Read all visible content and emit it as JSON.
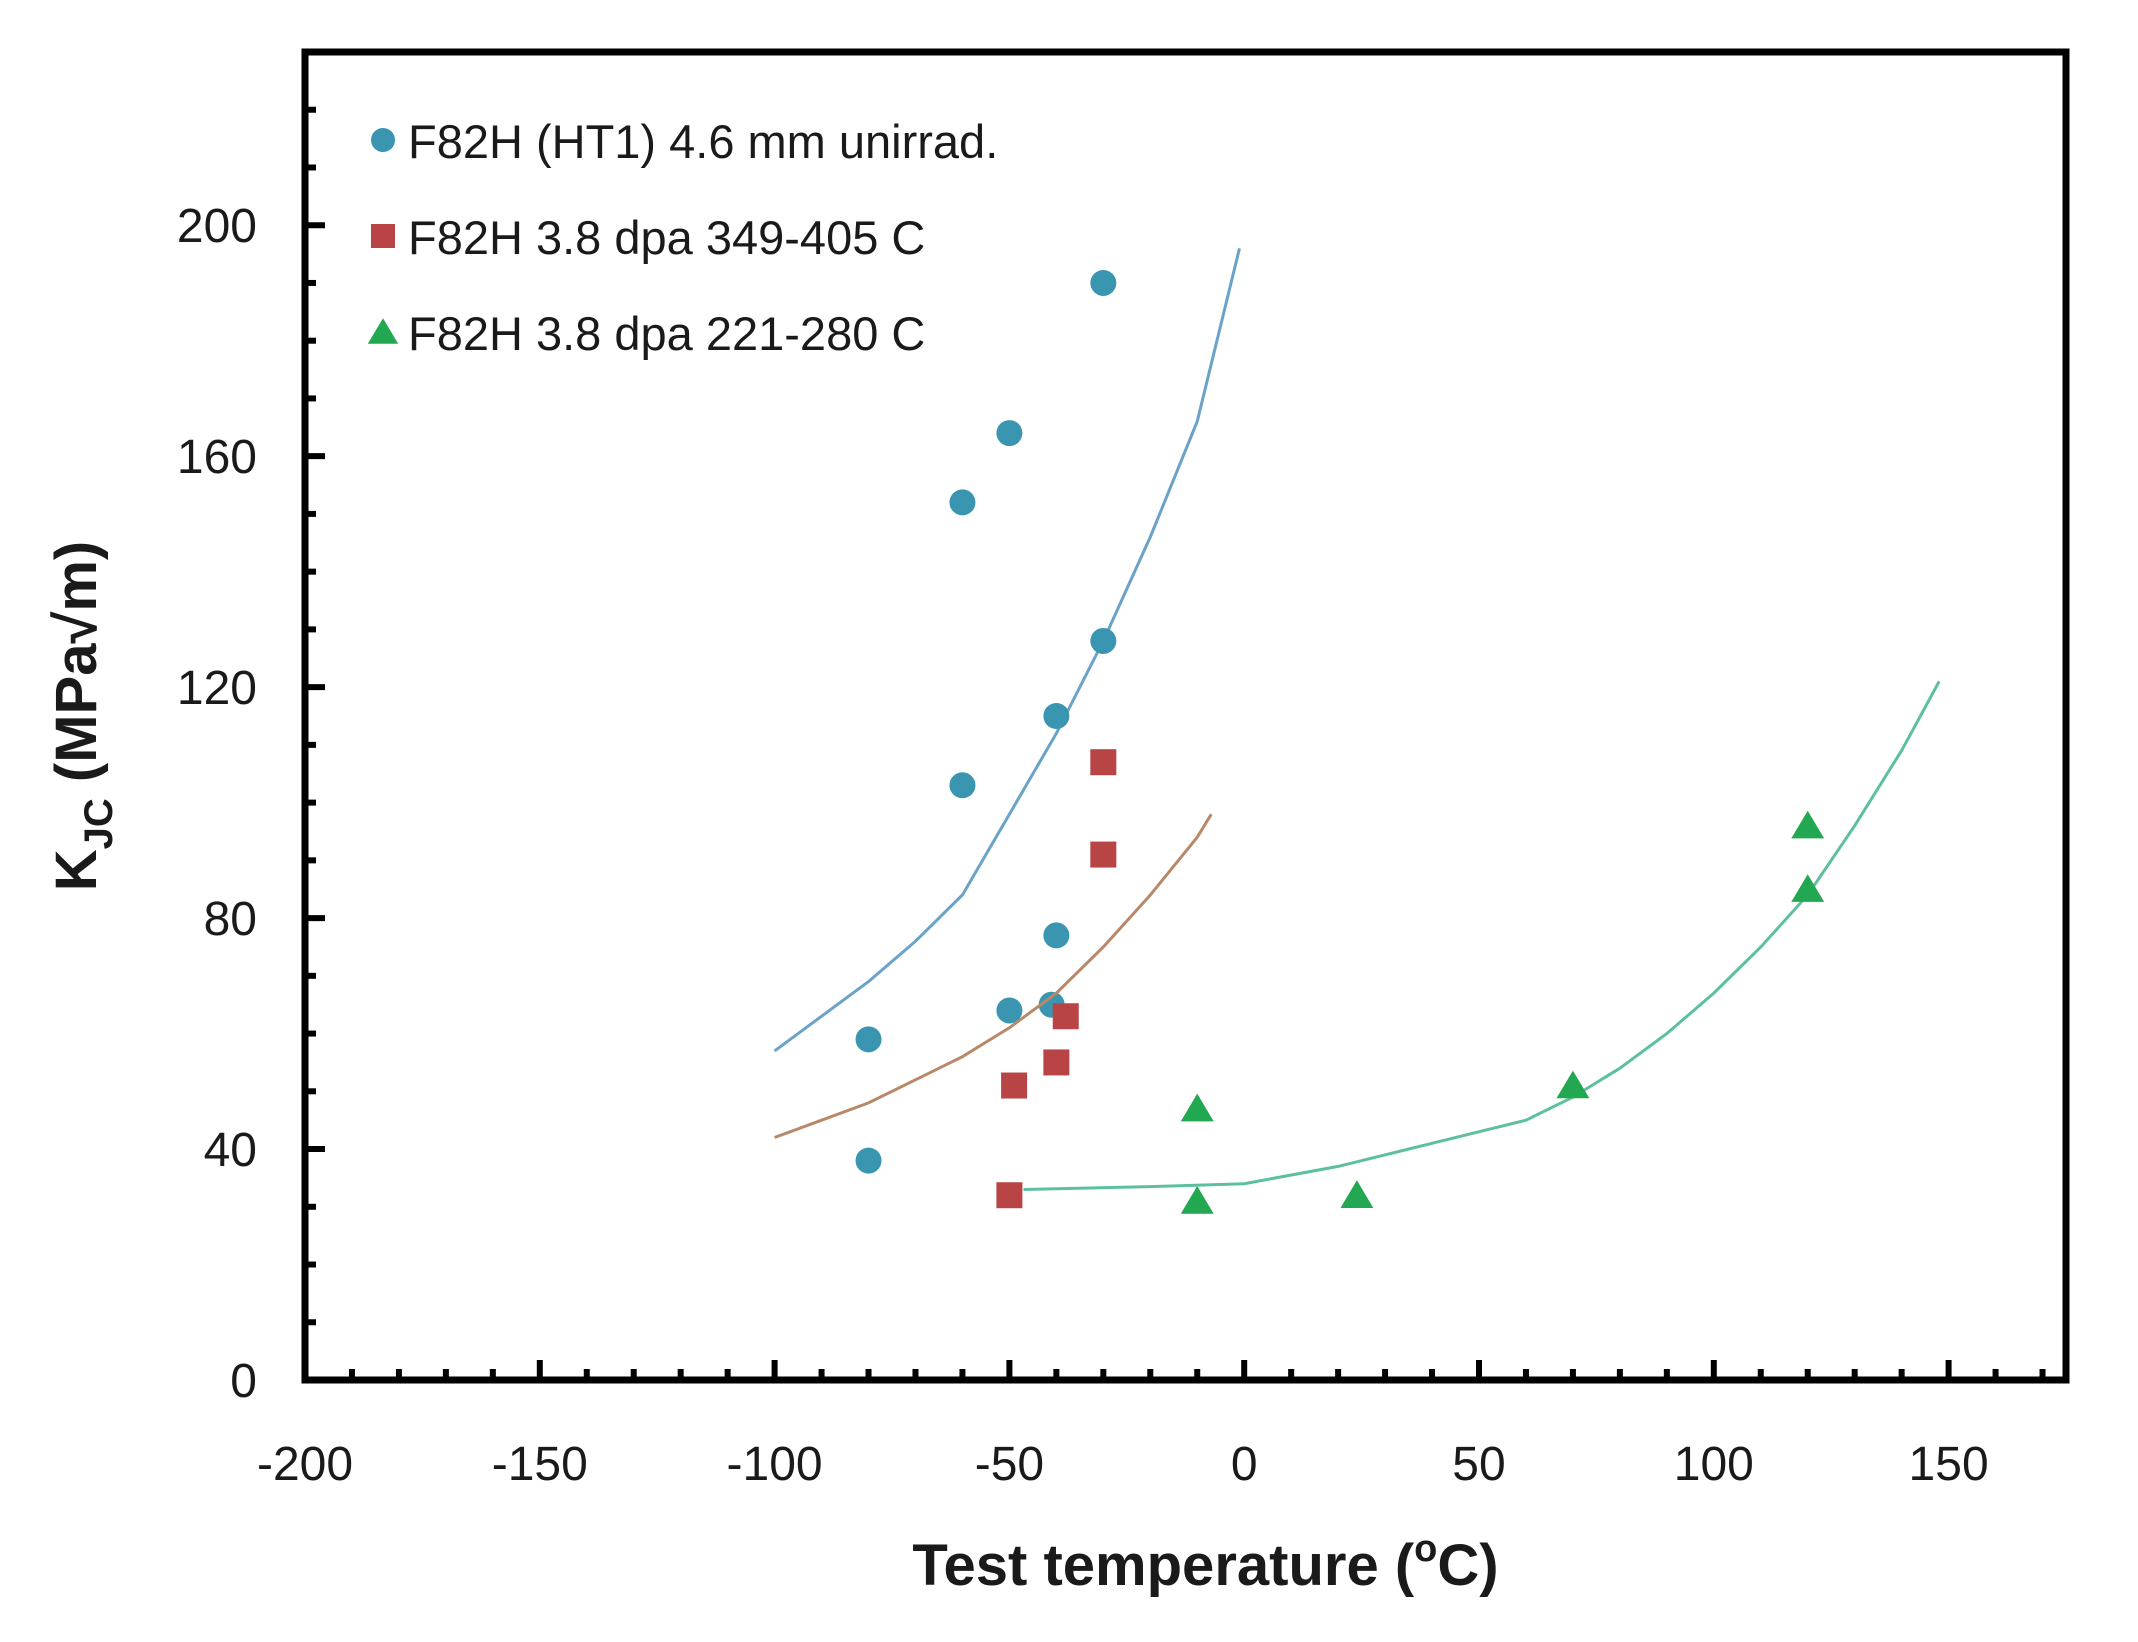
{
  "chart_data": {
    "type": "scatter",
    "xlabel": "Test temperature",
    "xlabel_unit_prefix": "(",
    "xlabel_unit_sup": "o",
    "xlabel_unit_suffix": "C)",
    "ylabel": "K",
    "ylabel_sub": "JC",
    "ylabel_unit": " (MPa√m)",
    "xlim": [
      -200,
      175
    ],
    "ylim": [
      0,
      230
    ],
    "x_ticks": [
      -200,
      -150,
      -100,
      -50,
      0,
      50,
      100,
      150
    ],
    "x_tick_labels": [
      "-200",
      "-150",
      "-100",
      "-50",
      "0",
      "50",
      "100",
      "150"
    ],
    "y_ticks": [
      0,
      40,
      80,
      120,
      160,
      200
    ],
    "y_tick_labels": [
      "0",
      "40",
      "80",
      "120",
      "160",
      "200"
    ],
    "grid": false,
    "legend_position": "top-left",
    "series": [
      {
        "name": "F82H (HT1) 4.6 mm unirrad.",
        "marker": "circle",
        "color": "#3a96b0",
        "points": [
          [
            -30,
            190
          ],
          [
            -50,
            164
          ],
          [
            -60,
            152
          ],
          [
            -30,
            128
          ],
          [
            -40,
            115
          ],
          [
            -60,
            103
          ],
          [
            -40,
            77
          ],
          [
            -50,
            64
          ],
          [
            -41,
            65
          ],
          [
            -80,
            59
          ],
          [
            -80,
            38
          ]
        ],
        "curve_color": "#6aa2c8",
        "curve": [
          [
            -100,
            57
          ],
          [
            -90,
            63
          ],
          [
            -80,
            69
          ],
          [
            -70,
            76
          ],
          [
            -60,
            84
          ],
          [
            -50,
            98
          ],
          [
            -40,
            112
          ],
          [
            -30,
            128
          ],
          [
            -20,
            146
          ],
          [
            -10,
            166
          ],
          [
            -1,
            196
          ]
        ]
      },
      {
        "name": "F82H 3.8 dpa 349-405 C",
        "marker": "square",
        "color": "#b84445",
        "points": [
          [
            -30,
            107
          ],
          [
            -30,
            91
          ],
          [
            -38,
            63
          ],
          [
            -40,
            55
          ],
          [
            -49,
            51
          ],
          [
            -50,
            32
          ]
        ],
        "curve_color": "#b88868",
        "curve": [
          [
            -100,
            42
          ],
          [
            -90,
            45
          ],
          [
            -80,
            48
          ],
          [
            -70,
            52
          ],
          [
            -60,
            56
          ],
          [
            -50,
            61
          ],
          [
            -40,
            67
          ],
          [
            -30,
            75
          ],
          [
            -20,
            84
          ],
          [
            -10,
            94
          ],
          [
            -7,
            98
          ]
        ]
      },
      {
        "name": "F82H 3.8 dpa 221-280 C",
        "marker": "triangle",
        "color": "#22a850",
        "points": [
          [
            120,
            96
          ],
          [
            120,
            85
          ],
          [
            70,
            51
          ],
          [
            -10,
            47
          ],
          [
            -10,
            31
          ],
          [
            24,
            32
          ]
        ],
        "curve_color": "#5cc0a0",
        "curve": [
          [
            -47,
            33
          ],
          [
            -20,
            33.5
          ],
          [
            0,
            34
          ],
          [
            20,
            37
          ],
          [
            40,
            41
          ],
          [
            60,
            45
          ],
          [
            70,
            49
          ],
          [
            80,
            54
          ],
          [
            90,
            60
          ],
          [
            100,
            67
          ],
          [
            110,
            75
          ],
          [
            120,
            84
          ],
          [
            130,
            96
          ],
          [
            140,
            109
          ],
          [
            148,
            121
          ]
        ]
      }
    ]
  }
}
